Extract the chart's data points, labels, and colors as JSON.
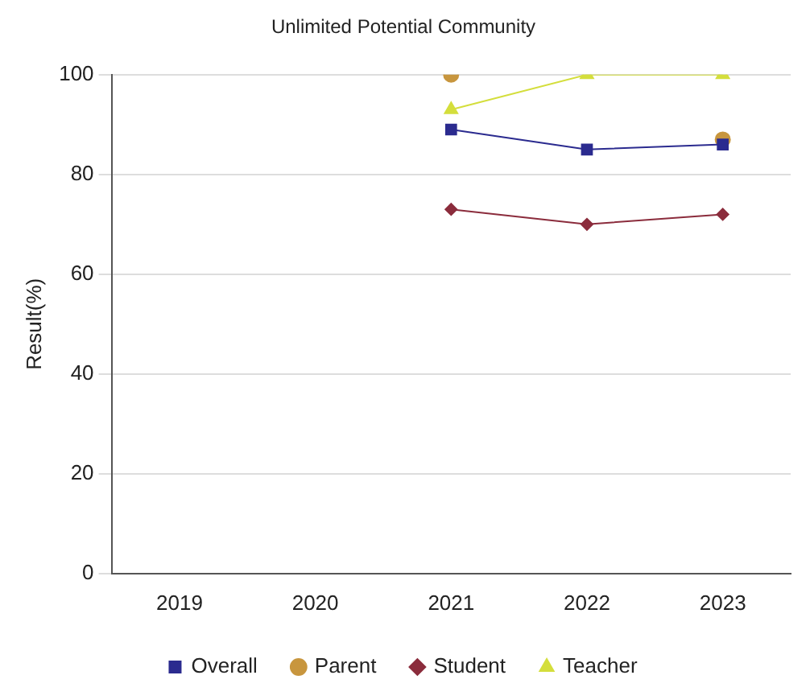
{
  "chart_data": {
    "type": "line",
    "title": "Unlimited Potential Community",
    "ylabel": "Result(%)",
    "categories": [
      "2019",
      "2020",
      "2021",
      "2022",
      "2023"
    ],
    "series": [
      {
        "name": "Overall",
        "color": "#2b2b8f",
        "marker": "square",
        "values": [
          null,
          null,
          89,
          85,
          86
        ]
      },
      {
        "name": "Parent",
        "type": "scatter",
        "color": "#c8963e",
        "marker": "circle",
        "values": [
          null,
          null,
          100,
          null,
          87
        ]
      },
      {
        "name": "Student",
        "color": "#8b2c3c",
        "marker": "diamond",
        "values": [
          null,
          null,
          73,
          70,
          72
        ]
      },
      {
        "name": "Teacher",
        "color": "#d4de3c",
        "marker": "triangle",
        "values": [
          null,
          null,
          93,
          100,
          100
        ]
      }
    ],
    "ylim": [
      0,
      100
    ],
    "yticks": [
      0,
      20,
      40,
      60,
      80,
      100
    ],
    "grid": "y",
    "legend": "bottom"
  }
}
